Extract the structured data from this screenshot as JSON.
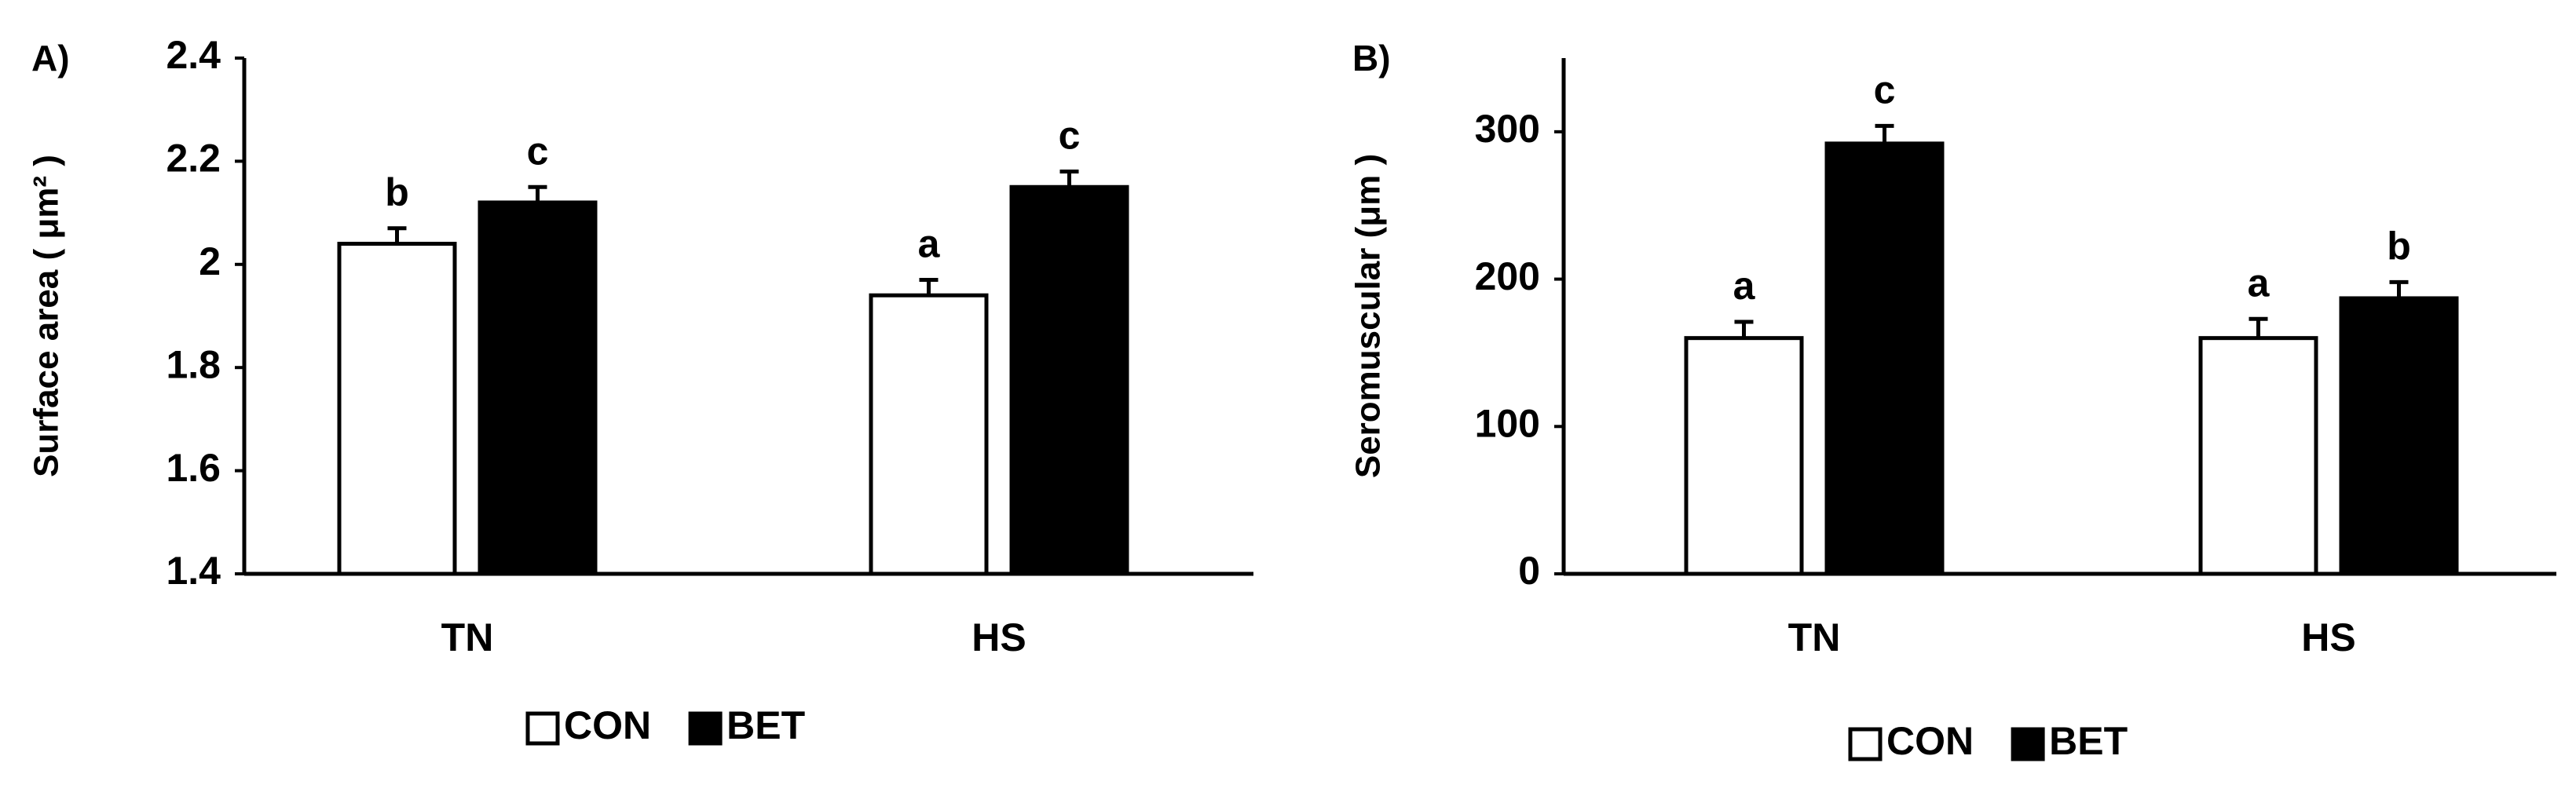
{
  "chart_data": [
    {
      "type": "bar",
      "panel_label": "A)",
      "y_label": "Surface area ( μm² )",
      "categories": [
        "TN",
        "HS"
      ],
      "series": [
        {
          "name": "CON",
          "color": "#ffffff",
          "values": [
            2.04,
            1.94
          ],
          "errors": [
            0.03,
            0.03
          ],
          "annotations": [
            "b",
            "a"
          ]
        },
        {
          "name": "BET",
          "color": "#000000",
          "values": [
            2.12,
            2.15
          ],
          "errors": [
            0.03,
            0.03
          ],
          "annotations": [
            "c",
            "c"
          ]
        }
      ],
      "ylim": [
        1.4,
        2.4
      ],
      "yticks": [
        1.4,
        1.6,
        1.8,
        2,
        2.2,
        2.4
      ]
    },
    {
      "type": "bar",
      "panel_label": "B)",
      "y_label": "Seromuscular (μm )",
      "categories": [
        "TN",
        "HS"
      ],
      "series": [
        {
          "name": "CON",
          "color": "#ffffff",
          "values": [
            160,
            160
          ],
          "errors": [
            11,
            13
          ],
          "annotations": [
            "a",
            "a"
          ]
        },
        {
          "name": "BET",
          "color": "#000000",
          "values": [
            292,
            187
          ],
          "errors": [
            12,
            11
          ],
          "annotations": [
            "c",
            "b"
          ]
        }
      ],
      "ylim": [
        0,
        350
      ],
      "yticks": [
        0,
        100,
        200,
        300
      ]
    }
  ]
}
